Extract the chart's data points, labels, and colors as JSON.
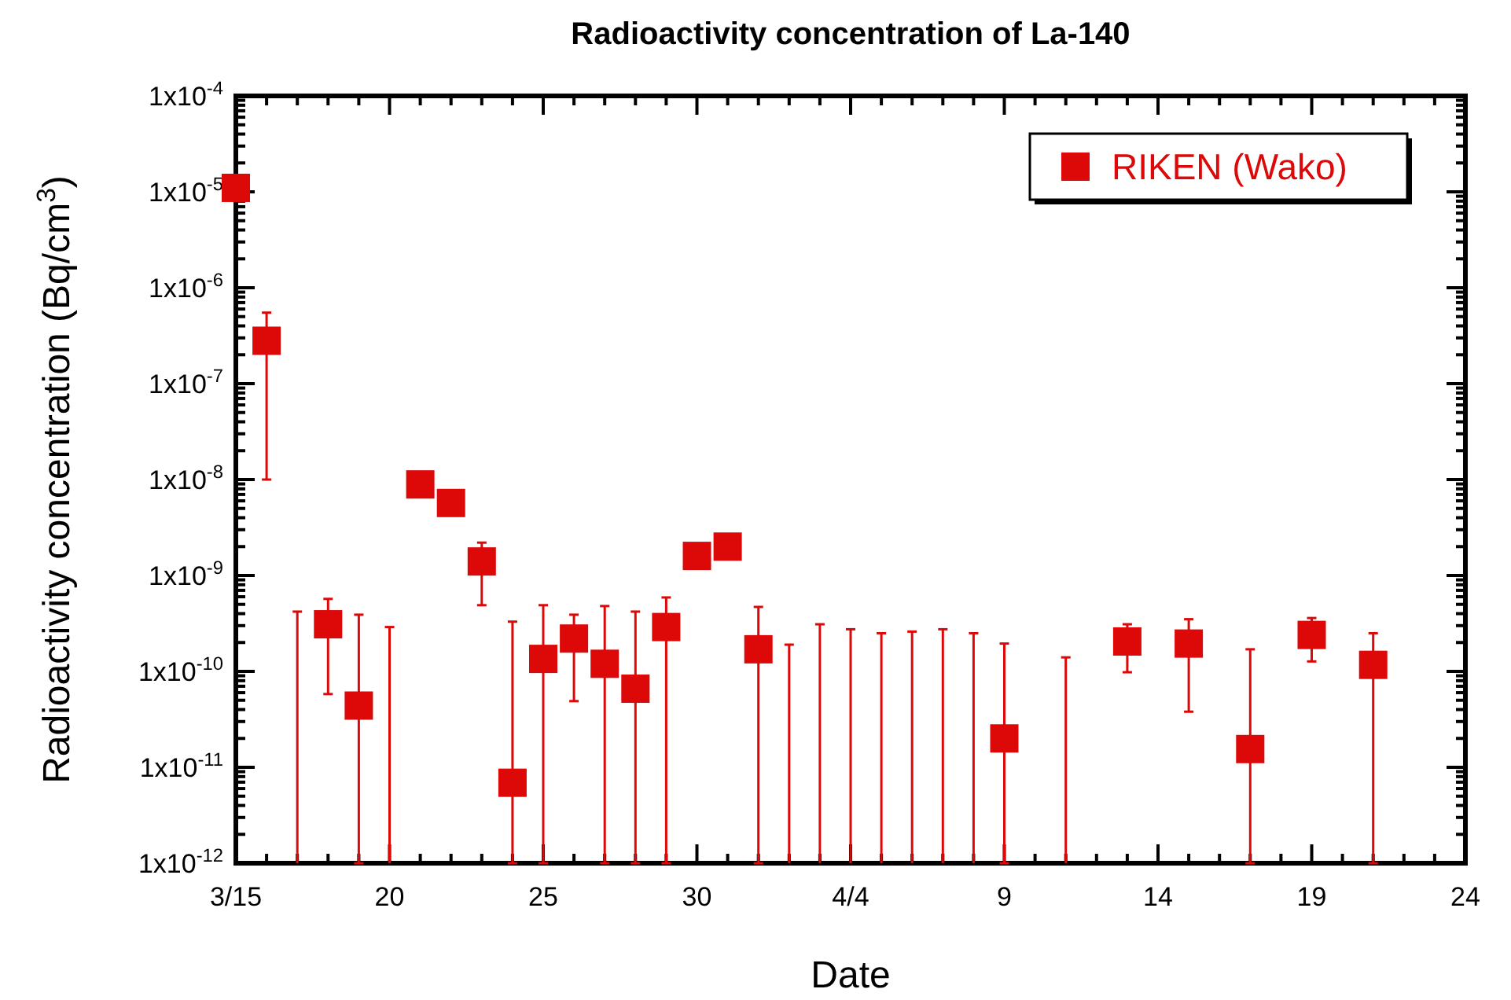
{
  "chart_data": {
    "type": "scatter",
    "title": "Radioactivity concentration of La-140",
    "xlabel": "Date",
    "ylabel": "Radioactivity concentration (Bq/cm$^{3}$)",
    "log": "y",
    "marker": "square",
    "legend": "top right",
    "grid": false,
    "xlim": [
      "--03-15",
      "--04-24"
    ],
    "xticks": [
      {
        "value": "--03-15",
        "label": "3/15"
      },
      {
        "value": "--03-16",
        "label": null
      },
      {
        "value": "--03-17",
        "label": null
      },
      {
        "value": "--03-18",
        "label": null
      },
      {
        "value": "--03-19",
        "label": null
      },
      {
        "value": "--03-20",
        "label": "20"
      },
      {
        "value": "--03-21",
        "label": null
      },
      {
        "value": "--03-22",
        "label": null
      },
      {
        "value": "--03-23",
        "label": null
      },
      {
        "value": "--03-24",
        "label": null
      },
      {
        "value": "--03-25",
        "label": "25"
      },
      {
        "value": "--03-26",
        "label": null
      },
      {
        "value": "--03-27",
        "label": null
      },
      {
        "value": "--03-28",
        "label": null
      },
      {
        "value": "--03-29",
        "label": null
      },
      {
        "value": "--03-30",
        "label": "30"
      },
      {
        "value": "--03-31",
        "label": null
      },
      {
        "value": "--04-01",
        "label": null
      },
      {
        "value": "--04-02",
        "label": null
      },
      {
        "value": "--04-03",
        "label": null
      },
      {
        "value": "--04-04",
        "label": "4/4"
      },
      {
        "value": "--04-05",
        "label": null
      },
      {
        "value": "--04-06",
        "label": null
      },
      {
        "value": "--04-07",
        "label": null
      },
      {
        "value": "--04-08",
        "label": null
      },
      {
        "value": "--04-09",
        "label": "9"
      },
      {
        "value": "--04-10",
        "label": null
      },
      {
        "value": "--04-11",
        "label": null
      },
      {
        "value": "--04-12",
        "label": null
      },
      {
        "value": "--04-13",
        "label": null
      },
      {
        "value": "--04-14",
        "label": "14"
      },
      {
        "value": "--04-15",
        "label": null
      },
      {
        "value": "--04-16",
        "label": null
      },
      {
        "value": "--04-17",
        "label": null
      },
      {
        "value": "--04-18",
        "label": null
      },
      {
        "value": "--04-19",
        "label": "19"
      },
      {
        "value": "--04-20",
        "label": null
      },
      {
        "value": "--04-21",
        "label": null
      },
      {
        "value": "--04-22",
        "label": null
      },
      {
        "value": "--04-23",
        "label": null
      },
      {
        "value": "--04-24",
        "label": "24"
      }
    ],
    "ylim": [
      1e-12,
      0.0001
    ],
    "yticks": [
      {
        "value": 1e-12,
        "label": "1x10$^{-12}$"
      },
      {
        "value": 2e-12,
        "label": null
      },
      {
        "value": 3e-12,
        "label": null
      },
      {
        "value": 4e-12,
        "label": null
      },
      {
        "value": 5e-12,
        "label": null
      },
      {
        "value": 6e-12,
        "label": null
      },
      {
        "value": 7e-12,
        "label": null
      },
      {
        "value": 8e-12,
        "label": null
      },
      {
        "value": 9e-12,
        "label": null
      },
      {
        "value": 1e-11,
        "label": "1x10$^{-11}$"
      },
      {
        "value": 2e-11,
        "label": null
      },
      {
        "value": 3e-11,
        "label": null
      },
      {
        "value": 4e-11,
        "label": null
      },
      {
        "value": 5e-11,
        "label": null
      },
      {
        "value": 6e-11,
        "label": null
      },
      {
        "value": 7e-11,
        "label": null
      },
      {
        "value": 8e-11,
        "label": null
      },
      {
        "value": 9e-11,
        "label": null
      },
      {
        "value": 1e-10,
        "label": "1x10$^{-10}$"
      },
      {
        "value": 2e-10,
        "label": null
      },
      {
        "value": 3e-10,
        "label": null
      },
      {
        "value": 4e-10,
        "label": null
      },
      {
        "value": 5e-10,
        "label": null
      },
      {
        "value": 6e-10,
        "label": null
      },
      {
        "value": 7e-10,
        "label": null
      },
      {
        "value": 8e-10,
        "label": null
      },
      {
        "value": 9e-10,
        "label": null
      },
      {
        "value": 1e-09,
        "label": "1x10$^{-9}$"
      },
      {
        "value": 2e-09,
        "label": null
      },
      {
        "value": 3e-09,
        "label": null
      },
      {
        "value": 4e-09,
        "label": null
      },
      {
        "value": 5e-09,
        "label": null
      },
      {
        "value": 6e-09,
        "label": null
      },
      {
        "value": 7e-09,
        "label": null
      },
      {
        "value": 8e-09,
        "label": null
      },
      {
        "value": 9e-09,
        "label": null
      },
      {
        "value": 1e-08,
        "label": "1x10$^{-8}$"
      },
      {
        "value": 2e-08,
        "label": null
      },
      {
        "value": 3e-08,
        "label": null
      },
      {
        "value": 4e-08,
        "label": null
      },
      {
        "value": 5e-08,
        "label": null
      },
      {
        "value": 6e-08,
        "label": null
      },
      {
        "value": 7e-08,
        "label": null
      },
      {
        "value": 8e-08,
        "label": null
      },
      {
        "value": 9e-08,
        "label": null
      },
      {
        "value": 1e-07,
        "label": "1x10$^{-7}$"
      },
      {
        "value": 2e-07,
        "label": null
      },
      {
        "value": 3e-07,
        "label": null
      },
      {
        "value": 4e-07,
        "label": null
      },
      {
        "value": 5e-07,
        "label": null
      },
      {
        "value": 6e-07,
        "label": null
      },
      {
        "value": 7e-07,
        "label": null
      },
      {
        "value": 8e-07,
        "label": null
      },
      {
        "value": 9e-07,
        "label": null
      },
      {
        "value": 1e-06,
        "label": "1x10$^{-6}$"
      },
      {
        "value": 2e-06,
        "label": null
      },
      {
        "value": 3e-06,
        "label": null
      },
      {
        "value": 4e-06,
        "label": null
      },
      {
        "value": 5e-06,
        "label": null
      },
      {
        "value": 6e-06,
        "label": null
      },
      {
        "value": 7e-06,
        "label": null
      },
      {
        "value": 8e-06,
        "label": null
      },
      {
        "value": 9e-06,
        "label": null
      },
      {
        "value": 1e-05,
        "label": "1x10$^{-5}$"
      },
      {
        "value": 2e-05,
        "label": null
      },
      {
        "value": 3e-05,
        "label": null
      },
      {
        "value": 4e-05,
        "label": null
      },
      {
        "value": 5e-05,
        "label": null
      },
      {
        "value": 6e-05,
        "label": null
      },
      {
        "value": 7e-05,
        "label": null
      },
      {
        "value": 8e-05,
        "label": null
      },
      {
        "value": 9e-05,
        "label": null
      },
      {
        "value": 0.0001,
        "label": "1x10$^{-4}$"
      }
    ],
    "series": [
      {
        "name": "RIKEN (Wako)",
        "color": "#dd0808",
        "x": [
          "--03-15",
          "--03-16",
          "--03-18",
          "--03-19",
          "--03-21",
          "--03-22",
          "--03-23",
          "--03-24",
          "--03-25",
          "--03-26",
          "--03-27",
          "--03-28",
          "--03-29",
          "--03-30",
          "--03-31",
          "--04-01",
          "--04-09",
          "--04-13",
          "--04-15",
          "--04-17",
          "--04-19",
          "--04-21"
        ],
        "values": [
          1.1e-05,
          2.8e-07,
          3.1e-10,
          4.4e-11,
          8.9e-09,
          5.7e-09,
          1.4e-09,
          6.9e-12,
          1.35e-10,
          2.2e-10,
          1.2e-10,
          6.6e-11,
          2.9e-10,
          1.6e-09,
          2e-09,
          1.7e-10,
          2e-11,
          2.05e-10,
          1.95e-10,
          1.55e-11,
          2.4e-10,
          1.17e-10
        ],
        "errors": [
          null,
          [
            1e-08,
            5.5e-07
          ],
          [
            5.8e-11,
            5.7e-10
          ],
          [
            1e-12,
            3.9e-10
          ],
          null,
          null,
          [
            4.9e-10,
            2.2e-09
          ],
          [
            1e-12,
            3.3e-10
          ],
          [
            1e-12,
            4.9e-10
          ],
          [
            4.9e-11,
            3.9e-10
          ],
          [
            1e-12,
            4.8e-10
          ],
          [
            1e-12,
            4.2e-10
          ],
          [
            1e-12,
            5.9e-10
          ],
          null,
          null,
          [
            1e-12,
            4.7e-10
          ],
          [
            1e-12,
            1.95e-10
          ],
          [
            9.8e-11,
            3.1e-10
          ],
          [
            3.8e-11,
            3.5e-10
          ],
          [
            1e-12,
            1.7e-10
          ],
          [
            1.27e-10,
            3.6e-10
          ],
          [
            1e-12,
            2.5e-10
          ]
        ]
      },
      {
        "type": "bar",
        "color": "#dd0808",
        "x": [
          "--03-17",
          "--03-20",
          "--04-02",
          "--04-03",
          "--04-04",
          "--04-05",
          "--04-06",
          "--04-07",
          "--04-08",
          "--04-11"
        ],
        "values": [
          4.2e-10,
          2.9e-10,
          1.9e-10,
          3.1e-10,
          2.75e-10,
          2.5e-10,
          2.6e-10,
          2.75e-10,
          2.5e-10,
          1.4e-10
        ]
      }
    ]
  }
}
